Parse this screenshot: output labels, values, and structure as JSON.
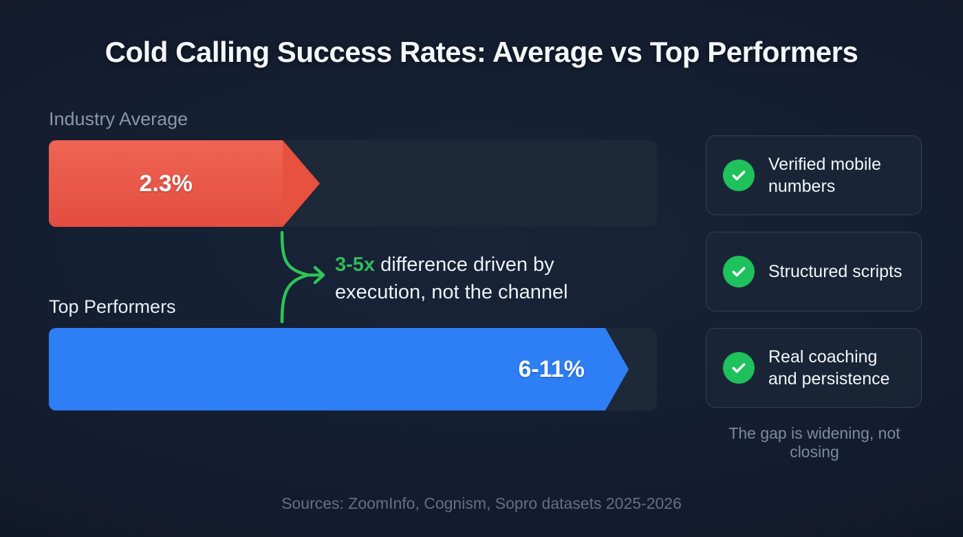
{
  "title": "Cold Calling Success Rates: Average vs Top Performers",
  "chart_data": {
    "type": "bar",
    "title": "Cold Calling Success Rates: Average vs Top Performers",
    "categories": [
      "Industry Average",
      "Top Performers"
    ],
    "series": [
      {
        "name": "Cold calling success rate",
        "values": [
          "2.3%",
          "6-11%"
        ]
      }
    ],
    "bars": [
      {
        "label": "Industry Average",
        "value_label": "2.3%",
        "value": 2.3,
        "fill_pct": 38.5,
        "color": "#e8594b"
      },
      {
        "label": "Top Performers",
        "value_label": "6-11%",
        "value_min": 6,
        "value_max": 11,
        "fill_pct": 91.5,
        "color": "#2e7ef5"
      }
    ],
    "annotation": {
      "highlight": "3-5x",
      "line1_rest": " difference driven by",
      "line2": "execution, not the channel"
    },
    "xlim": [
      0,
      100
    ],
    "legend": false,
    "grid": false
  },
  "cards": {
    "items": [
      {
        "label": "Verified mobile numbers"
      },
      {
        "label": "Structured scripts"
      },
      {
        "label": "Real coaching and persistence"
      }
    ],
    "footnote": "The gap is widening, not closing",
    "check_color": "#22c55e"
  },
  "footer": {
    "sources": "Sources: ZoomInfo, Cognism, Sopro datasets 2025-2026"
  },
  "colors": {
    "background_center": "#182438",
    "background_edge": "#0b1220",
    "track": "#1d2838",
    "bar_red": "#e8594b",
    "bar_blue": "#2e7ef5",
    "accent_green": "#22c55e",
    "muted_text": "#8a96a9"
  }
}
